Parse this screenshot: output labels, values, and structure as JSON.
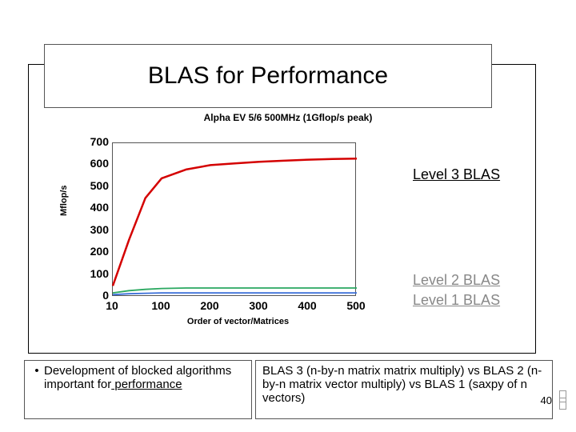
{
  "title": "BLAS for Performance",
  "chart": {
    "type": "line",
    "subtitle": "Alpha EV 5/6 500MHz (1Gflop/s peak)",
    "ylabel": "Mflop/s",
    "xlabel": "Order of vector/Matrices",
    "ylim": [
      0,
      700
    ],
    "ytick_step": 100,
    "yticks": [
      0,
      100,
      200,
      300,
      400,
      500,
      600,
      700
    ],
    "xticks": [
      10,
      100,
      200,
      300,
      400,
      500
    ],
    "tick_fontsize": 14,
    "label_fontsize": 11,
    "background_color": "#ffffff",
    "border_color": "#555555",
    "series": [
      {
        "name": "Level 3 BLAS",
        "color": "#d40000",
        "line_width": 2.5,
        "x": [
          10,
          40,
          70,
          100,
          150,
          200,
          250,
          300,
          350,
          400,
          450,
          500
        ],
        "y": [
          50,
          260,
          450,
          540,
          580,
          600,
          608,
          615,
          620,
          625,
          628,
          630
        ]
      },
      {
        "name": "Level 2 BLAS",
        "color": "#2aa860",
        "line_width": 1.8,
        "x": [
          10,
          40,
          70,
          100,
          150,
          200,
          250,
          300,
          350,
          400,
          450,
          500
        ],
        "y": [
          18,
          28,
          34,
          38,
          40,
          40,
          40,
          40,
          40,
          40,
          40,
          40
        ]
      },
      {
        "name": "Level 1 BLAS",
        "color": "#3a6fd8",
        "line_width": 1.8,
        "x": [
          10,
          40,
          70,
          100,
          150,
          200,
          250,
          300,
          350,
          400,
          450,
          500
        ],
        "y": [
          10,
          14,
          16,
          18,
          18,
          18,
          18,
          18,
          18,
          18,
          18,
          18
        ]
      }
    ]
  },
  "annotations": {
    "l3": "Level 3 BLAS",
    "l2": "Level 2 BLAS",
    "l1": "Level 1 BLAS"
  },
  "bullet": {
    "lead": "Development of blocked algorithms important for",
    "underlined_tail": " performance"
  },
  "description": "BLAS 3 (n-by-n matrix matrix multiply) vs BLAS 2 (n-by-n matrix vector multiply) vs BLAS 1 (saxpy of  n vectors)",
  "page_number": "40"
}
